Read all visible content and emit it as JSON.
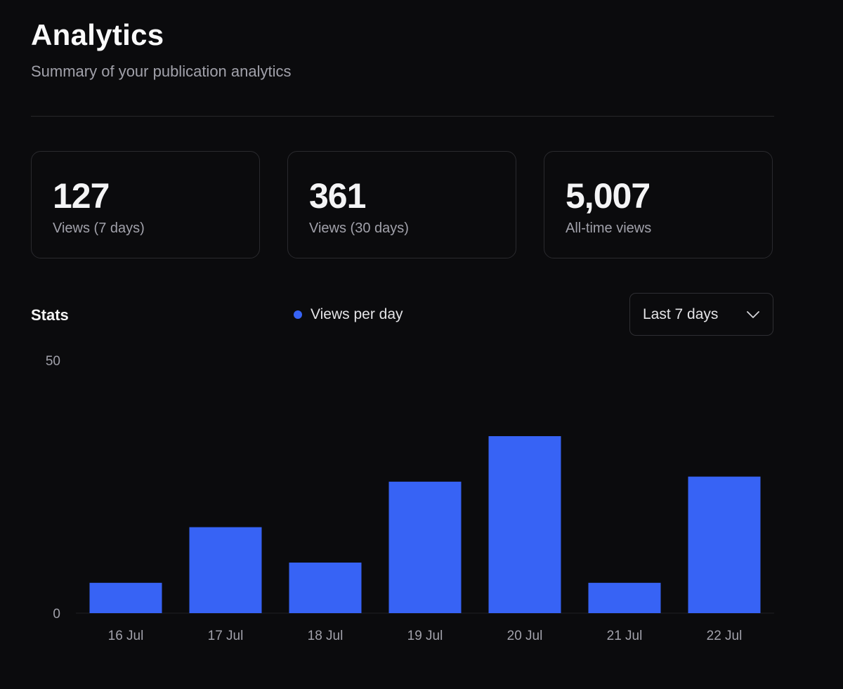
{
  "header": {
    "title": "Analytics",
    "subtitle": "Summary of your publication analytics"
  },
  "cards": [
    {
      "value": "127",
      "label": "Views (7 days)"
    },
    {
      "value": "361",
      "label": "Views (30 days)"
    },
    {
      "value": "5,007",
      "label": "All-time views"
    }
  ],
  "stats": {
    "label": "Stats",
    "legend_label": "Views per day",
    "range_select": {
      "selected": "Last 7 days"
    }
  },
  "colors": {
    "accent": "#3763f5",
    "background": "#0b0b0d"
  },
  "chart_data": {
    "type": "bar",
    "categories": [
      "16 Jul",
      "17 Jul",
      "18 Jul",
      "19 Jul",
      "20 Jul",
      "21 Jul",
      "22 Jul"
    ],
    "series": [
      {
        "name": "Views per day",
        "values": [
          6,
          17,
          10,
          26,
          35,
          6,
          27
        ]
      }
    ],
    "ylim": [
      0,
      50
    ],
    "y_ticks": [
      0,
      50
    ],
    "xlabel": "",
    "ylabel": "",
    "grid": false,
    "legend_position": "top-center"
  }
}
